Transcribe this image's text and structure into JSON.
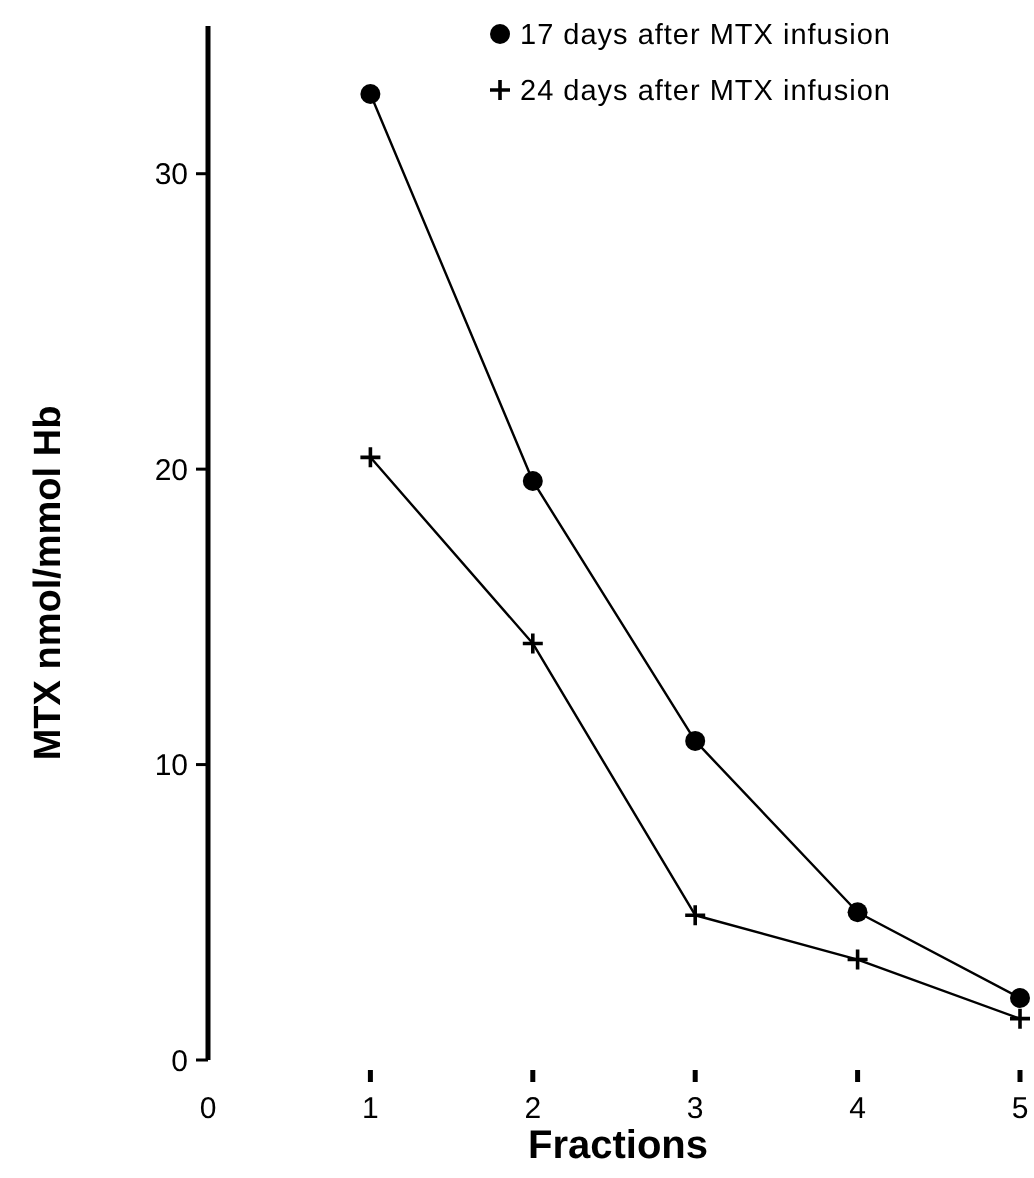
{
  "chart_data": {
    "type": "line",
    "xlabel": "Fractions",
    "ylabel": "MTX nmol/mmol Hb",
    "x": [
      1,
      2,
      3,
      4,
      5
    ],
    "series": [
      {
        "name": "17 days after MTX infusion",
        "color": "#000000",
        "marker": "circle",
        "values": [
          32.7,
          19.6,
          10.8,
          5.0,
          2.1
        ]
      },
      {
        "name": "24 days after MTX infusion",
        "color": "#000000",
        "marker": "cross",
        "values": [
          20.4,
          14.1,
          4.9,
          3.4,
          1.4
        ]
      }
    ],
    "xlim": [
      0,
      5
    ],
    "xticks": [
      0,
      1,
      2,
      3,
      4,
      5
    ],
    "ylim": [
      0,
      35
    ],
    "yticks": [
      0,
      10,
      20,
      30
    ],
    "legend": "top right",
    "grid": false,
    "line_style": "solid"
  }
}
